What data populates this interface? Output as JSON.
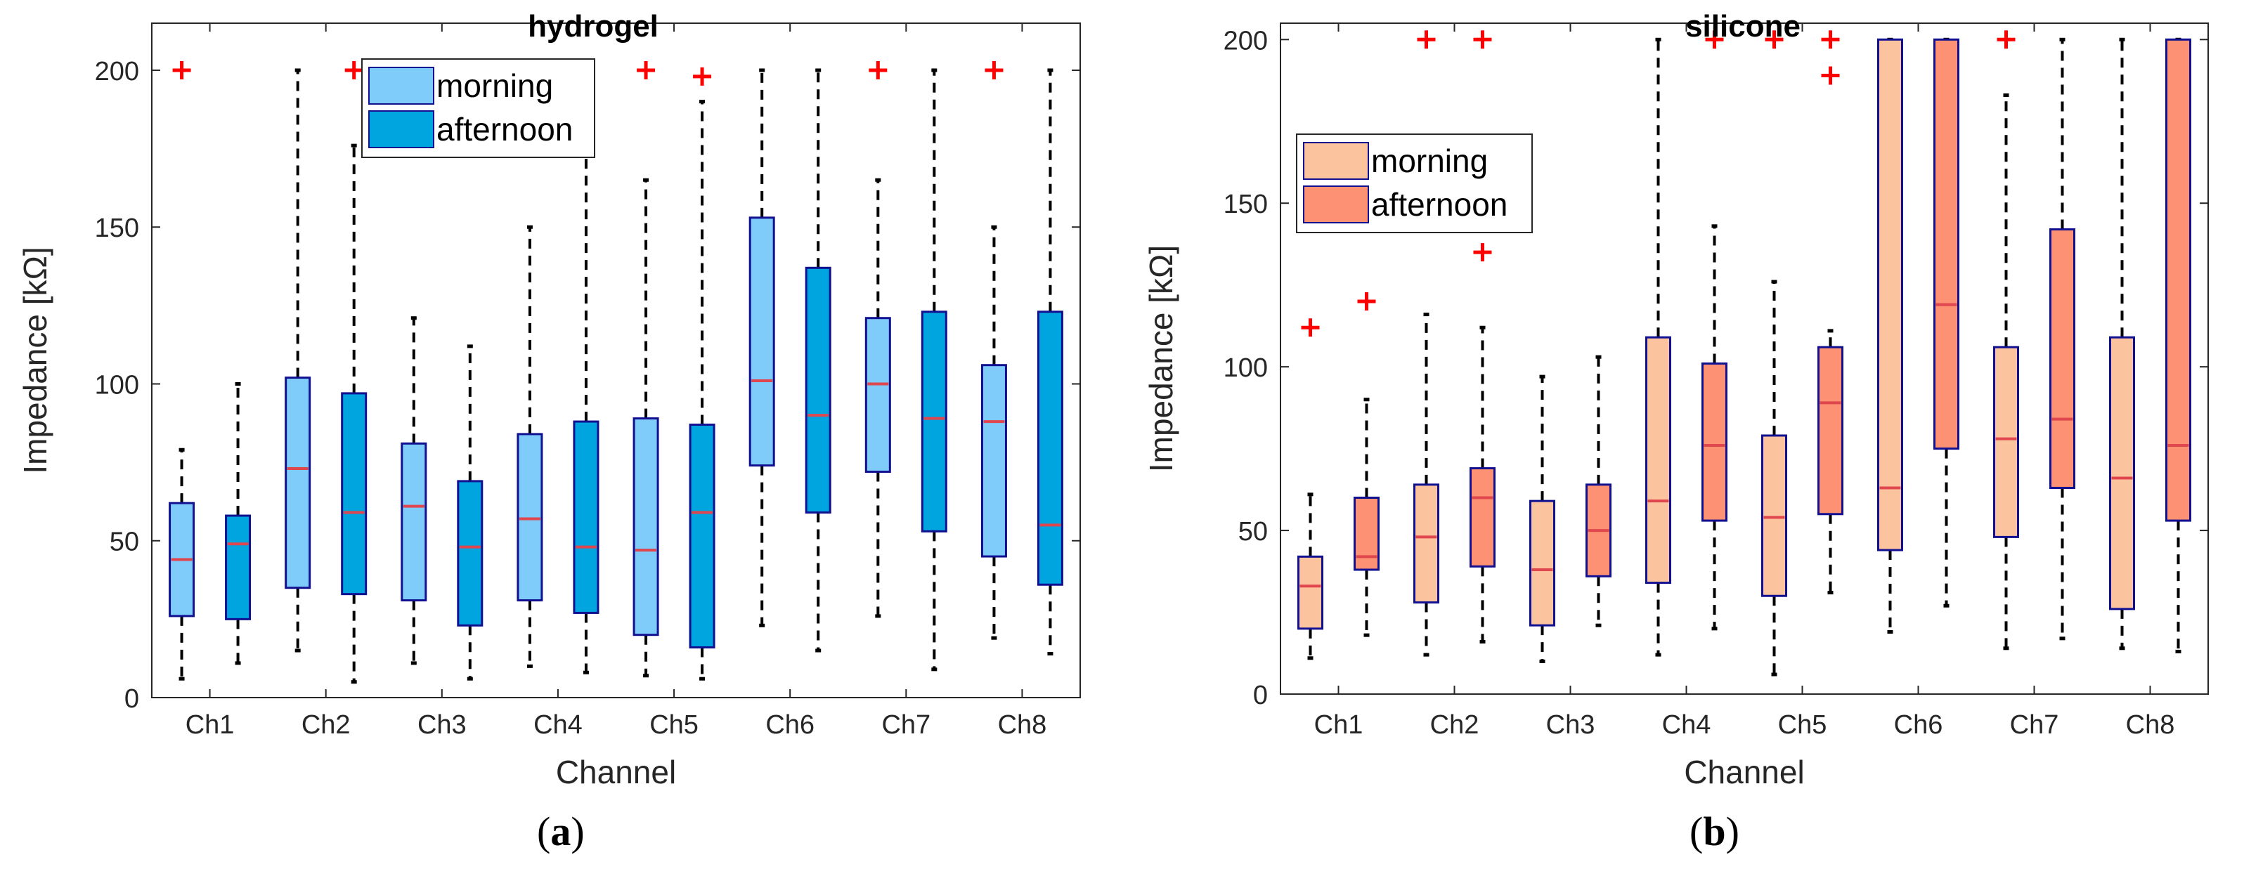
{
  "colors": {
    "hydrogel_morning": "#7FCBFA",
    "hydrogel_afternoon": "#00A4DE",
    "silicone_morning": "#FCC49E",
    "silicone_afternoon": "#FD9173",
    "box_edge": "#101090",
    "median": "#E0464E",
    "outlier": "#FF0000",
    "axis": "#262626"
  },
  "panels": [
    {
      "letter": "a",
      "open": "(",
      "close": ")"
    },
    {
      "letter": "b",
      "open": "(",
      "close": ")"
    }
  ],
  "chart_data": [
    {
      "type": "box",
      "title": "hydrogel",
      "xlabel": "Channel",
      "ylabel": "Impedance [kΩ]",
      "ylim": [
        0,
        215
      ],
      "yticks": [
        0,
        50,
        100,
        150,
        200
      ],
      "categories": [
        "Ch1",
        "Ch2",
        "Ch3",
        "Ch4",
        "Ch5",
        "Ch6",
        "Ch7",
        "Ch8"
      ],
      "legend_position": "top-center",
      "series": [
        {
          "name": "morning",
          "color_key": "hydrogel_morning",
          "boxes": [
            {
              "min": 6,
              "q1": 26,
              "median": 44,
              "q3": 62,
              "max": 79,
              "outliers": [
                200
              ]
            },
            {
              "min": 15,
              "q1": 35,
              "median": 73,
              "q3": 102,
              "max": 200,
              "outliers": []
            },
            {
              "min": 11,
              "q1": 31,
              "median": 61,
              "q3": 81,
              "max": 121,
              "outliers": []
            },
            {
              "min": 10,
              "q1": 31,
              "median": 57,
              "q3": 84,
              "max": 150,
              "outliers": []
            },
            {
              "min": 7,
              "q1": 20,
              "median": 47,
              "q3": 89,
              "max": 165,
              "outliers": [
                200
              ]
            },
            {
              "min": 23,
              "q1": 74,
              "median": 101,
              "q3": 153,
              "max": 200,
              "outliers": []
            },
            {
              "min": 26,
              "q1": 72,
              "median": 100,
              "q3": 121,
              "max": 165,
              "outliers": [
                200
              ]
            },
            {
              "min": 19,
              "q1": 45,
              "median": 88,
              "q3": 106,
              "max": 150,
              "outliers": [
                200
              ]
            }
          ]
        },
        {
          "name": "afternoon",
          "color_key": "hydrogel_afternoon",
          "boxes": [
            {
              "min": 11,
              "q1": 25,
              "median": 49,
              "q3": 58,
              "max": 100,
              "outliers": []
            },
            {
              "min": 5,
              "q1": 33,
              "median": 59,
              "q3": 97,
              "max": 176,
              "outliers": [
                200
              ]
            },
            {
              "min": 6,
              "q1": 23,
              "median": 48,
              "q3": 69,
              "max": 112,
              "outliers": []
            },
            {
              "min": 8,
              "q1": 27,
              "median": 48,
              "q3": 88,
              "max": 174,
              "outliers": []
            },
            {
              "min": 6,
              "q1": 16,
              "median": 59,
              "q3": 87,
              "max": 190,
              "outliers": [
                198
              ]
            },
            {
              "min": 15,
              "q1": 59,
              "median": 90,
              "q3": 137,
              "max": 200,
              "outliers": []
            },
            {
              "min": 9,
              "q1": 53,
              "median": 89,
              "q3": 123,
              "max": 200,
              "outliers": []
            },
            {
              "min": 14,
              "q1": 36,
              "median": 55,
              "q3": 123,
              "max": 200,
              "outliers": []
            }
          ]
        }
      ]
    },
    {
      "type": "box",
      "title": "silicone",
      "xlabel": "Channel",
      "ylabel": "Impedance  [kΩ]",
      "ylim": [
        0,
        205
      ],
      "yticks": [
        0,
        50,
        100,
        150,
        200
      ],
      "categories": [
        "Ch1",
        "Ch2",
        "Ch3",
        "Ch4",
        "Ch5",
        "Ch6",
        "Ch7",
        "Ch8"
      ],
      "legend_position": "top-left",
      "series": [
        {
          "name": "morning",
          "color_key": "silicone_morning",
          "boxes": [
            {
              "min": 11,
              "q1": 20,
              "median": 33,
              "q3": 42,
              "max": 61,
              "outliers": [
                112
              ]
            },
            {
              "min": 12,
              "q1": 28,
              "median": 48,
              "q3": 64,
              "max": 116,
              "outliers": [
                200
              ]
            },
            {
              "min": 10,
              "q1": 21,
              "median": 38,
              "q3": 59,
              "max": 97,
              "outliers": []
            },
            {
              "min": 12,
              "q1": 34,
              "median": 59,
              "q3": 109,
              "max": 200,
              "outliers": []
            },
            {
              "min": 6,
              "q1": 30,
              "median": 54,
              "q3": 79,
              "max": 126,
              "outliers": [
                200
              ]
            },
            {
              "min": 19,
              "q1": 44,
              "median": 63,
              "q3": 200,
              "max": 200,
              "outliers": []
            },
            {
              "min": 14,
              "q1": 48,
              "median": 78,
              "q3": 106,
              "max": 183,
              "outliers": [
                200
              ]
            },
            {
              "min": 14,
              "q1": 26,
              "median": 66,
              "q3": 109,
              "max": 200,
              "outliers": []
            }
          ]
        },
        {
          "name": "afternoon",
          "color_key": "silicone_afternoon",
          "boxes": [
            {
              "min": 18,
              "q1": 38,
              "median": 42,
              "q3": 60,
              "max": 90,
              "outliers": [
                120
              ]
            },
            {
              "min": 16,
              "q1": 39,
              "median": 60,
              "q3": 69,
              "max": 112,
              "outliers": [
                200,
                135
              ]
            },
            {
              "min": 21,
              "q1": 36,
              "median": 50,
              "q3": 64,
              "max": 103,
              "outliers": []
            },
            {
              "min": 20,
              "q1": 53,
              "median": 76,
              "q3": 101,
              "max": 143,
              "outliers": [
                200
              ]
            },
            {
              "min": 31,
              "q1": 55,
              "median": 89,
              "q3": 106,
              "max": 111,
              "outliers": [
                200,
                189
              ]
            },
            {
              "min": 27,
              "q1": 75,
              "median": 119,
              "q3": 200,
              "max": 200,
              "outliers": []
            },
            {
              "min": 17,
              "q1": 63,
              "median": 84,
              "q3": 142,
              "max": 200,
              "outliers": []
            },
            {
              "min": 13,
              "q1": 53,
              "median": 76,
              "q3": 200,
              "max": 200,
              "outliers": []
            }
          ]
        }
      ]
    }
  ]
}
